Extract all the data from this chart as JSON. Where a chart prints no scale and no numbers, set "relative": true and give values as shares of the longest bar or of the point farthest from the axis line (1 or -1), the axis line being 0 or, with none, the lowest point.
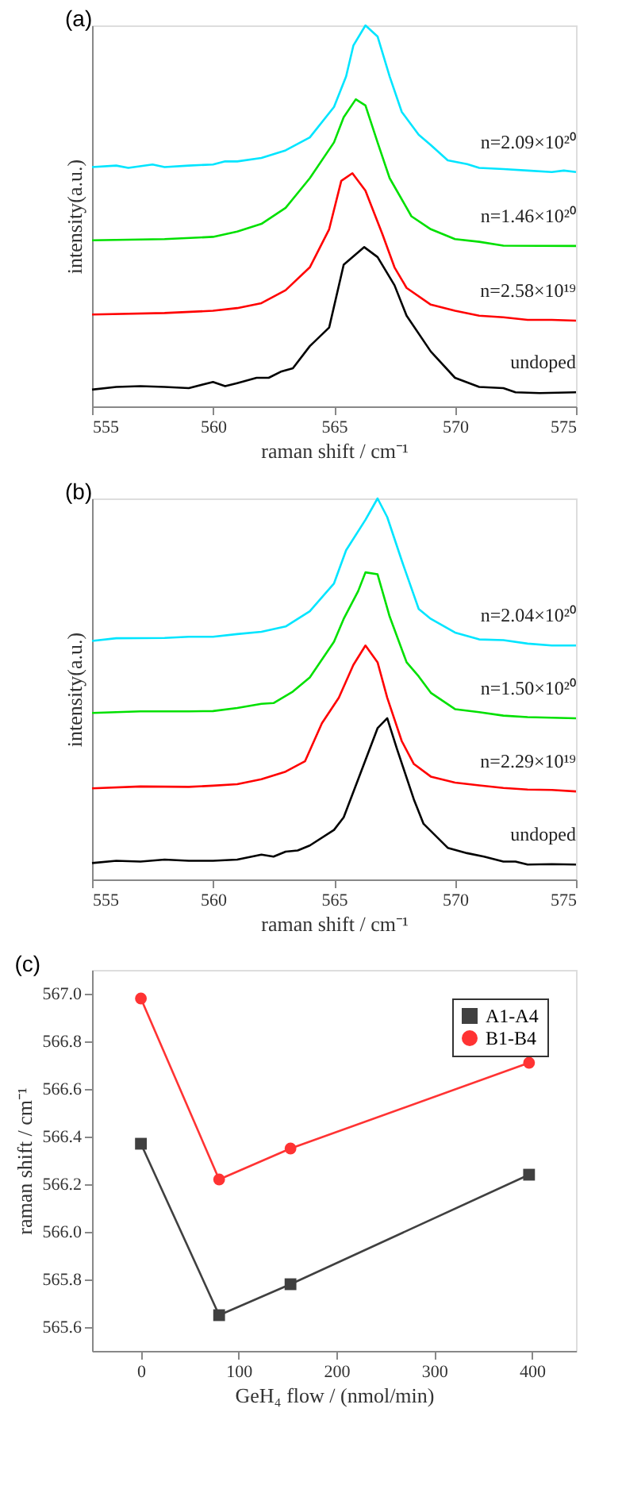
{
  "chart_data": [
    {
      "type": "line",
      "title": "(a)",
      "xlabel": "raman shift / cm⁻¹",
      "ylabel": "intensity(a.u.)",
      "relative": true,
      "xlim": [
        555,
        575
      ],
      "xticks": [
        555,
        560,
        565,
        570,
        575
      ],
      "grid": false,
      "legend": false,
      "marker": "none",
      "series": [
        {
          "name": "undoped",
          "color": "#000000",
          "x": [
            555,
            556,
            557,
            558,
            559,
            560,
            560.5,
            561,
            561.8,
            562.3,
            562.8,
            563.3,
            564,
            564.8,
            565.4,
            566.25,
            566.8,
            567.5,
            568,
            569,
            570,
            571,
            572,
            572.5,
            573.5,
            575
          ],
          "values": [
            0.044,
            0.051,
            0.053,
            0.051,
            0.048,
            0.064,
            0.053,
            0.061,
            0.075,
            0.075,
            0.091,
            0.1,
            0.158,
            0.207,
            0.372,
            0.418,
            0.392,
            0.318,
            0.238,
            0.144,
            0.075,
            0.051,
            0.048,
            0.037,
            0.035,
            0.037
          ]
        },
        {
          "name": "n=2.58×10¹⁹",
          "color": "#ff0000",
          "x": [
            555,
            558,
            560,
            561,
            562,
            563,
            564,
            564.8,
            565.3,
            565.76,
            566.3,
            567,
            567.5,
            568,
            569,
            570,
            571,
            572,
            573,
            574,
            575
          ],
          "values": [
            0.241,
            0.245,
            0.251,
            0.258,
            0.271,
            0.305,
            0.365,
            0.465,
            0.592,
            0.612,
            0.566,
            0.452,
            0.365,
            0.311,
            0.267,
            0.251,
            0.238,
            0.234,
            0.227,
            0.227,
            0.225
          ]
        },
        {
          "name": "n=1.46×10²⁰",
          "color": "#00e000",
          "x": [
            555,
            558,
            560,
            561,
            562,
            563,
            564,
            565,
            565.4,
            565.9,
            566.3,
            566.8,
            567.3,
            568.2,
            569,
            570,
            571,
            572,
            575
          ],
          "values": [
            0.436,
            0.439,
            0.445,
            0.459,
            0.479,
            0.521,
            0.599,
            0.693,
            0.759,
            0.806,
            0.79,
            0.693,
            0.599,
            0.499,
            0.465,
            0.439,
            0.432,
            0.422,
            0.421
          ]
        },
        {
          "name": "n=2.09×10²⁰",
          "color": "#00e5ff",
          "x": [
            555,
            556,
            556.5,
            557.5,
            558,
            559,
            560,
            560.5,
            561,
            562,
            563,
            564,
            565,
            565.5,
            565.8,
            566.3,
            566.8,
            567.3,
            567.8,
            568.5,
            569,
            569.7,
            570.5,
            571,
            572,
            573,
            574,
            574.5,
            575
          ],
          "values": [
            0.628,
            0.632,
            0.626,
            0.635,
            0.628,
            0.632,
            0.635,
            0.643,
            0.643,
            0.652,
            0.672,
            0.706,
            0.786,
            0.866,
            0.947,
            1.0,
            0.971,
            0.866,
            0.773,
            0.713,
            0.686,
            0.646,
            0.636,
            0.626,
            0.623,
            0.619,
            0.615,
            0.619,
            0.615
          ]
        }
      ]
    },
    {
      "type": "line",
      "title": "(b)",
      "xlabel": "raman shift / cm⁻¹",
      "ylabel": "intensity(a.u.)",
      "relative": true,
      "xlim": [
        555,
        575
      ],
      "xticks": [
        555,
        560,
        565,
        570,
        575
      ],
      "grid": false,
      "legend": false,
      "marker": "none",
      "series": [
        {
          "name": "undoped",
          "color": "#000000",
          "x": [
            555,
            556,
            557,
            558,
            559,
            560,
            561,
            562,
            562.5,
            563,
            563.5,
            564,
            565,
            565.4,
            566,
            566.8,
            567.2,
            567.6,
            568.3,
            568.7,
            569.7,
            570.5,
            571.2,
            572,
            572.5,
            573,
            574,
            575
          ],
          "values": [
            0.043,
            0.049,
            0.047,
            0.052,
            0.049,
            0.049,
            0.052,
            0.065,
            0.06,
            0.073,
            0.076,
            0.089,
            0.13,
            0.163,
            0.263,
            0.397,
            0.423,
            0.343,
            0.21,
            0.146,
            0.083,
            0.069,
            0.06,
            0.047,
            0.047,
            0.039,
            0.04,
            0.039
          ]
        },
        {
          "name": "n=2.29×10¹⁹",
          "color": "#ff0000",
          "x": [
            555,
            557,
            559,
            560,
            561,
            562,
            563,
            563.8,
            564.5,
            565.2,
            565.8,
            566.3,
            566.8,
            567.2,
            567.8,
            568.3,
            569,
            570,
            571,
            572,
            573,
            574,
            575
          ],
          "values": [
            0.239,
            0.244,
            0.243,
            0.246,
            0.25,
            0.263,
            0.283,
            0.31,
            0.41,
            0.477,
            0.563,
            0.614,
            0.57,
            0.477,
            0.363,
            0.303,
            0.27,
            0.254,
            0.247,
            0.24,
            0.236,
            0.235,
            0.231
          ]
        },
        {
          "name": "n=1.50×10²⁰",
          "color": "#00e000",
          "x": [
            555,
            557,
            559,
            560,
            561,
            562,
            562.5,
            563.3,
            564,
            565,
            565.4,
            566,
            566.3,
            566.8,
            567.3,
            568,
            568.5,
            569,
            570,
            571,
            572,
            573,
            575
          ],
          "values": [
            0.437,
            0.441,
            0.441,
            0.442,
            0.45,
            0.461,
            0.463,
            0.493,
            0.53,
            0.624,
            0.684,
            0.757,
            0.806,
            0.801,
            0.69,
            0.57,
            0.533,
            0.49,
            0.447,
            0.439,
            0.43,
            0.426,
            0.423
          ]
        },
        {
          "name": "n=2.04×10²⁰",
          "color": "#00e5ff",
          "x": [
            555,
            556,
            558,
            559,
            560,
            561,
            562,
            563,
            564,
            565,
            565.5,
            566.3,
            566.8,
            567.2,
            567.8,
            568.5,
            569,
            570,
            571,
            572,
            573,
            574,
            575
          ],
          "values": [
            0.626,
            0.633,
            0.634,
            0.637,
            0.637,
            0.644,
            0.65,
            0.664,
            0.704,
            0.777,
            0.864,
            0.944,
            1.0,
            0.951,
            0.837,
            0.71,
            0.684,
            0.648,
            0.63,
            0.628,
            0.619,
            0.614,
            0.614
          ]
        }
      ]
    },
    {
      "type": "line",
      "title": "(c)",
      "xlabel": "GeH₄ flow / (nmol/min)",
      "ylabel": "raman shift / cm⁻¹",
      "x": [
        0,
        80,
        153,
        397
      ],
      "xlim": [
        -50,
        445
      ],
      "xticks": [
        0,
        100,
        200,
        300,
        400
      ],
      "ylim": [
        565.5,
        567.1
      ],
      "yticks": [
        {
          "value": 565.6,
          "label": "565.6"
        },
        {
          "value": 565.8,
          "label": "565.8"
        },
        {
          "value": 566,
          "label": "566.0"
        },
        {
          "value": 566.2,
          "label": "566.2"
        },
        {
          "value": 566.4,
          "label": "566.4"
        },
        {
          "value": 566.6,
          "label": "566.6"
        },
        {
          "value": 566.8,
          "label": "566.8"
        },
        {
          "value": 567,
          "label": "567.0"
        }
      ],
      "grid": false,
      "legend": "top right",
      "series": [
        {
          "name": "A1-A4",
          "color": "#404040",
          "marker": "square",
          "values": [
            566.37,
            565.65,
            565.78,
            566.24
          ]
        },
        {
          "name": "B1-B4",
          "color": "#ff3333",
          "marker": "circle",
          "values": [
            566.98,
            566.22,
            566.35,
            566.71
          ]
        }
      ]
    }
  ]
}
